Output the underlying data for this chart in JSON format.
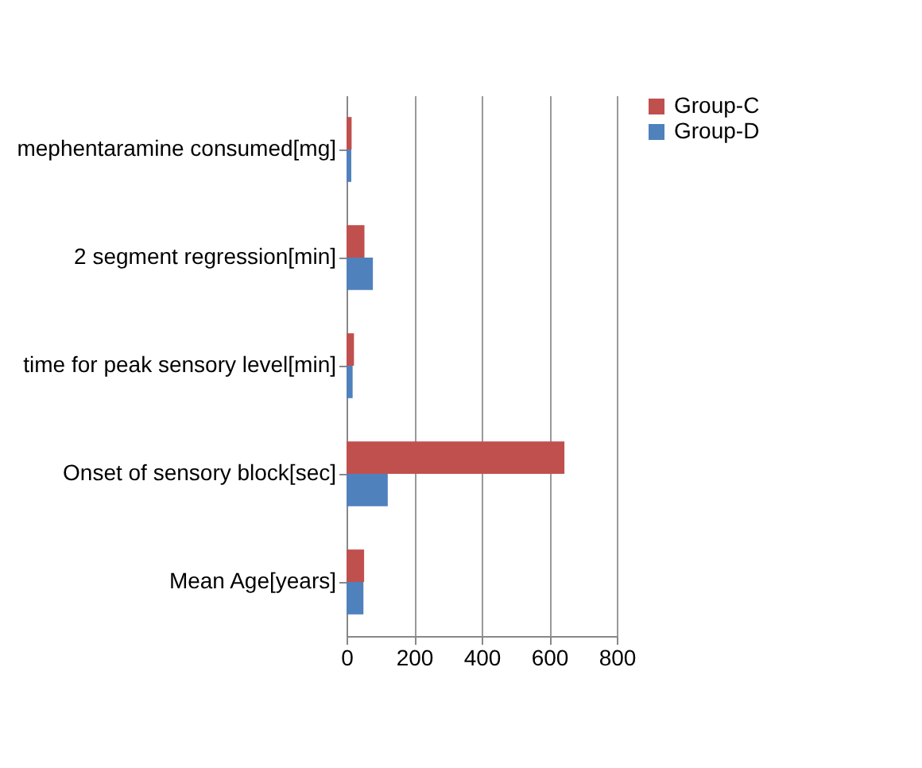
{
  "chart_data": {
    "type": "bar",
    "orientation": "horizontal",
    "categories": [
      "mephentaramine consumed[mg]",
      "2 segment regression[min]",
      "time for peak sensory level[min]",
      "Onset of sensory block[sec]",
      "Mean Age[years]"
    ],
    "series": [
      {
        "name": "Group-C",
        "color": "#c0504d",
        "values": [
          15,
          53,
          22,
          645,
          52
        ]
      },
      {
        "name": "Group-D",
        "color": "#4f81bd",
        "values": [
          14,
          78,
          18,
          122,
          50
        ]
      }
    ],
    "xlim": [
      0,
      800
    ],
    "xticks": [
      0,
      200,
      400,
      600,
      800
    ],
    "grid": "x",
    "legend": "right"
  }
}
